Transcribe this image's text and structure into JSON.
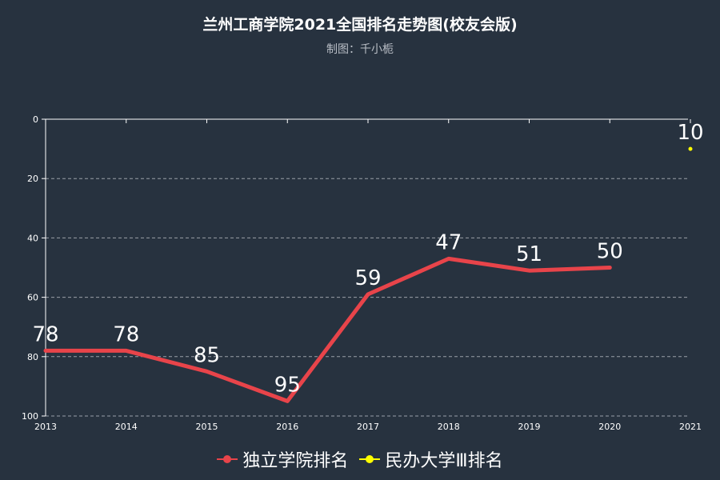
{
  "title": "兰州工商学院2021全国排名走势图(校友会版)",
  "subtitle": "制图：千小栀",
  "colors": {
    "background": "#27323f",
    "series1": "#e8444a",
    "series2": "#ffff00",
    "grid": "#9aa0a8",
    "axis": "#ffffff"
  },
  "chart_data": {
    "type": "line",
    "title": "兰州工商学院2021全国排名走势图(校友会版)",
    "subtitle": "制图：千小栀",
    "categories": [
      "2013",
      "2014",
      "2015",
      "2016",
      "2017",
      "2018",
      "2019",
      "2020",
      "2021"
    ],
    "y_ticks": [
      "0",
      "20",
      "40",
      "60",
      "80",
      "100"
    ],
    "ylim": [
      0,
      100
    ],
    "y_inverted": true,
    "grid": "horizontal dashed",
    "legend_position": "bottom",
    "series": [
      {
        "name": "独立学院排名",
        "color": "#e8444a",
        "values": [
          78,
          78,
          85,
          95,
          59,
          47,
          51,
          50,
          null
        ],
        "labels": [
          "78",
          "78",
          "85",
          "95",
          "59",
          "47",
          "51",
          "50",
          ""
        ]
      },
      {
        "name": "民办大学Ⅲ排名",
        "color": "#ffff00",
        "values": [
          null,
          null,
          null,
          null,
          null,
          null,
          null,
          null,
          10
        ],
        "labels": [
          "",
          "",
          "",
          "",
          "",
          "",
          "",
          "",
          "10"
        ]
      }
    ]
  },
  "legend": {
    "items": [
      {
        "label": "独立学院排名",
        "color": "#e8444a"
      },
      {
        "label": "民办大学Ⅲ排名",
        "color": "#ffff00"
      }
    ]
  }
}
